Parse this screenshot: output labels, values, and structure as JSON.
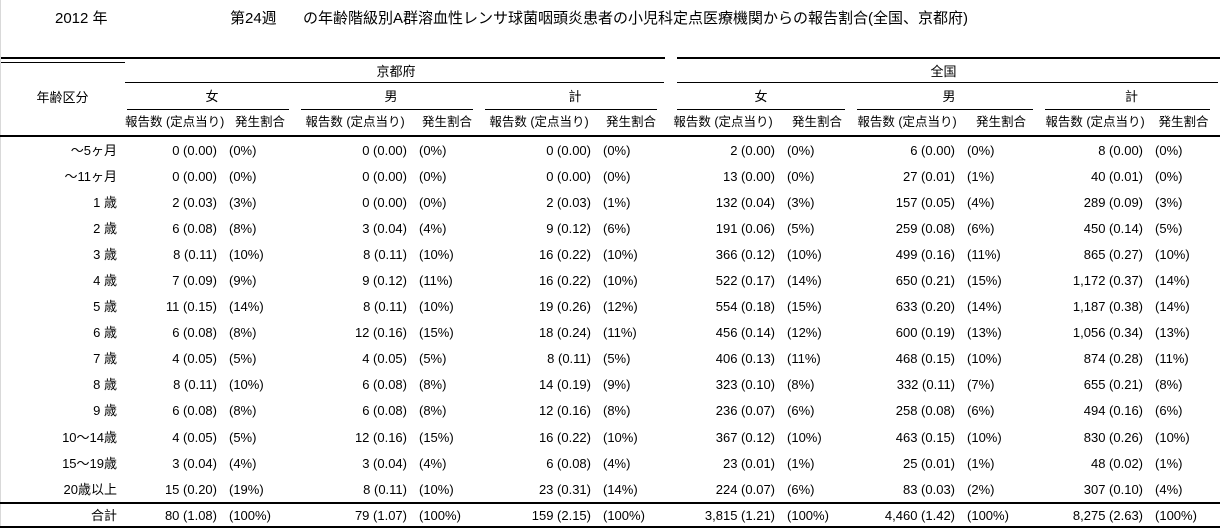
{
  "page": {
    "title_year": "2012 年",
    "title_week": "第24週",
    "title_main": "の年齢階級別A群溶血性レンサ球菌咽頭炎患者の小児科定点医療機関からの報告割合(全国、京都府)"
  },
  "table": {
    "age_column_header": "年齢区分",
    "regions": [
      "京都府",
      "全国"
    ],
    "genders": [
      "女",
      "男",
      "計"
    ],
    "subheader_report": "報告数 (定点当り)",
    "subheader_ratio": "発生割合",
    "rows": [
      {
        "age": "〜5ヶ月",
        "values": [
          "0 (0.00)",
          "(0%)",
          "0 (0.00)",
          "(0%)",
          "0 (0.00)",
          "(0%)",
          "2 (0.00)",
          "(0%)",
          "6 (0.00)",
          "(0%)",
          "8 (0.00)",
          "(0%)"
        ]
      },
      {
        "age": "〜11ヶ月",
        "values": [
          "0 (0.00)",
          "(0%)",
          "0 (0.00)",
          "(0%)",
          "0 (0.00)",
          "(0%)",
          "13 (0.00)",
          "(0%)",
          "27 (0.01)",
          "(1%)",
          "40 (0.01)",
          "(0%)"
        ]
      },
      {
        "age": "1 歳",
        "values": [
          "2 (0.03)",
          "(3%)",
          "0 (0.00)",
          "(0%)",
          "2 (0.03)",
          "(1%)",
          "132 (0.04)",
          "(3%)",
          "157 (0.05)",
          "(4%)",
          "289 (0.09)",
          "(3%)"
        ]
      },
      {
        "age": "2 歳",
        "values": [
          "6 (0.08)",
          "(8%)",
          "3 (0.04)",
          "(4%)",
          "9 (0.12)",
          "(6%)",
          "191 (0.06)",
          "(5%)",
          "259 (0.08)",
          "(6%)",
          "450 (0.14)",
          "(5%)"
        ]
      },
      {
        "age": "3 歳",
        "values": [
          "8 (0.11)",
          "(10%)",
          "8 (0.11)",
          "(10%)",
          "16 (0.22)",
          "(10%)",
          "366 (0.12)",
          "(10%)",
          "499 (0.16)",
          "(11%)",
          "865 (0.27)",
          "(10%)"
        ]
      },
      {
        "age": "4 歳",
        "values": [
          "7 (0.09)",
          "(9%)",
          "9 (0.12)",
          "(11%)",
          "16 (0.22)",
          "(10%)",
          "522 (0.17)",
          "(14%)",
          "650 (0.21)",
          "(15%)",
          "1,172 (0.37)",
          "(14%)"
        ]
      },
      {
        "age": "5 歳",
        "values": [
          "11 (0.15)",
          "(14%)",
          "8 (0.11)",
          "(10%)",
          "19 (0.26)",
          "(12%)",
          "554 (0.18)",
          "(15%)",
          "633 (0.20)",
          "(14%)",
          "1,187 (0.38)",
          "(14%)"
        ]
      },
      {
        "age": "6 歳",
        "values": [
          "6 (0.08)",
          "(8%)",
          "12 (0.16)",
          "(15%)",
          "18 (0.24)",
          "(11%)",
          "456 (0.14)",
          "(12%)",
          "600 (0.19)",
          "(13%)",
          "1,056 (0.34)",
          "(13%)"
        ]
      },
      {
        "age": "7 歳",
        "values": [
          "4 (0.05)",
          "(5%)",
          "4 (0.05)",
          "(5%)",
          "8 (0.11)",
          "(5%)",
          "406 (0.13)",
          "(11%)",
          "468 (0.15)",
          "(10%)",
          "874 (0.28)",
          "(11%)"
        ]
      },
      {
        "age": "8 歳",
        "values": [
          "8 (0.11)",
          "(10%)",
          "6 (0.08)",
          "(8%)",
          "14 (0.19)",
          "(9%)",
          "323 (0.10)",
          "(8%)",
          "332 (0.11)",
          "(7%)",
          "655 (0.21)",
          "(8%)"
        ]
      },
      {
        "age": "9 歳",
        "values": [
          "6 (0.08)",
          "(8%)",
          "6 (0.08)",
          "(8%)",
          "12 (0.16)",
          "(8%)",
          "236 (0.07)",
          "(6%)",
          "258 (0.08)",
          "(6%)",
          "494 (0.16)",
          "(6%)"
        ]
      },
      {
        "age": "10〜14歳",
        "values": [
          "4 (0.05)",
          "(5%)",
          "12 (0.16)",
          "(15%)",
          "16 (0.22)",
          "(10%)",
          "367 (0.12)",
          "(10%)",
          "463 (0.15)",
          "(10%)",
          "830 (0.26)",
          "(10%)"
        ]
      },
      {
        "age": "15〜19歳",
        "values": [
          "3 (0.04)",
          "(4%)",
          "3 (0.04)",
          "(4%)",
          "6 (0.08)",
          "(4%)",
          "23 (0.01)",
          "(1%)",
          "25 (0.01)",
          "(1%)",
          "48 (0.02)",
          "(1%)"
        ]
      },
      {
        "age": "20歳以上",
        "values": [
          "15 (0.20)",
          "(19%)",
          "8 (0.11)",
          "(10%)",
          "23 (0.31)",
          "(14%)",
          "224 (0.07)",
          "(6%)",
          "83 (0.03)",
          "(2%)",
          "307 (0.10)",
          "(4%)"
        ]
      }
    ],
    "total_row": {
      "age": "合計",
      "values": [
        "80 (1.08)",
        "(100%)",
        "79 (1.07)",
        "(100%)",
        "159 (2.15)",
        "(100%)",
        "3,815 (1.21)",
        "(100%)",
        "4,460 (1.42)",
        "(100%)",
        "8,275 (2.63)",
        "(100%)"
      ]
    }
  }
}
